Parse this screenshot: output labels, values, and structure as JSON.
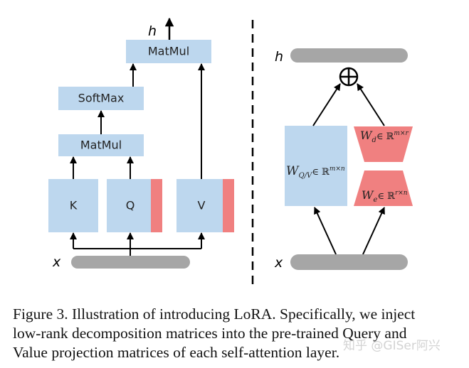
{
  "left": {
    "output_label": "h",
    "input_label": "x",
    "matmul_top": "MatMul",
    "softmax": "SoftMax",
    "matmul_bottom": "MatMul",
    "k": "K",
    "q": "Q",
    "v": "V"
  },
  "right": {
    "output_label": "h",
    "input_label": "x",
    "add_symbol": "⊕",
    "w_main": "W",
    "w_main_sub": "Q/V",
    "w_main_sup": "∈ ℝ",
    "w_main_dim": "m×n",
    "w_d": "W",
    "w_d_sub": "d",
    "w_d_sup": "∈ ℝ",
    "w_d_dim": "m×r",
    "w_e": "W",
    "w_e_sub": "e",
    "w_e_sup": "∈ ℝ",
    "w_e_dim": "r×n"
  },
  "caption": {
    "line1": "Figure 3. Illustration of introducing LoRA. Specifically, we inject",
    "line2": "low-rank decomposition matrices into the pre-trained Query and",
    "line3": "Value projection matrices of each self-attention layer."
  },
  "watermark": "知乎 @GISer阿兴",
  "colors": {
    "block": "#bdd7ee",
    "lora": "#f08080",
    "bar": "#a6a6a6"
  }
}
